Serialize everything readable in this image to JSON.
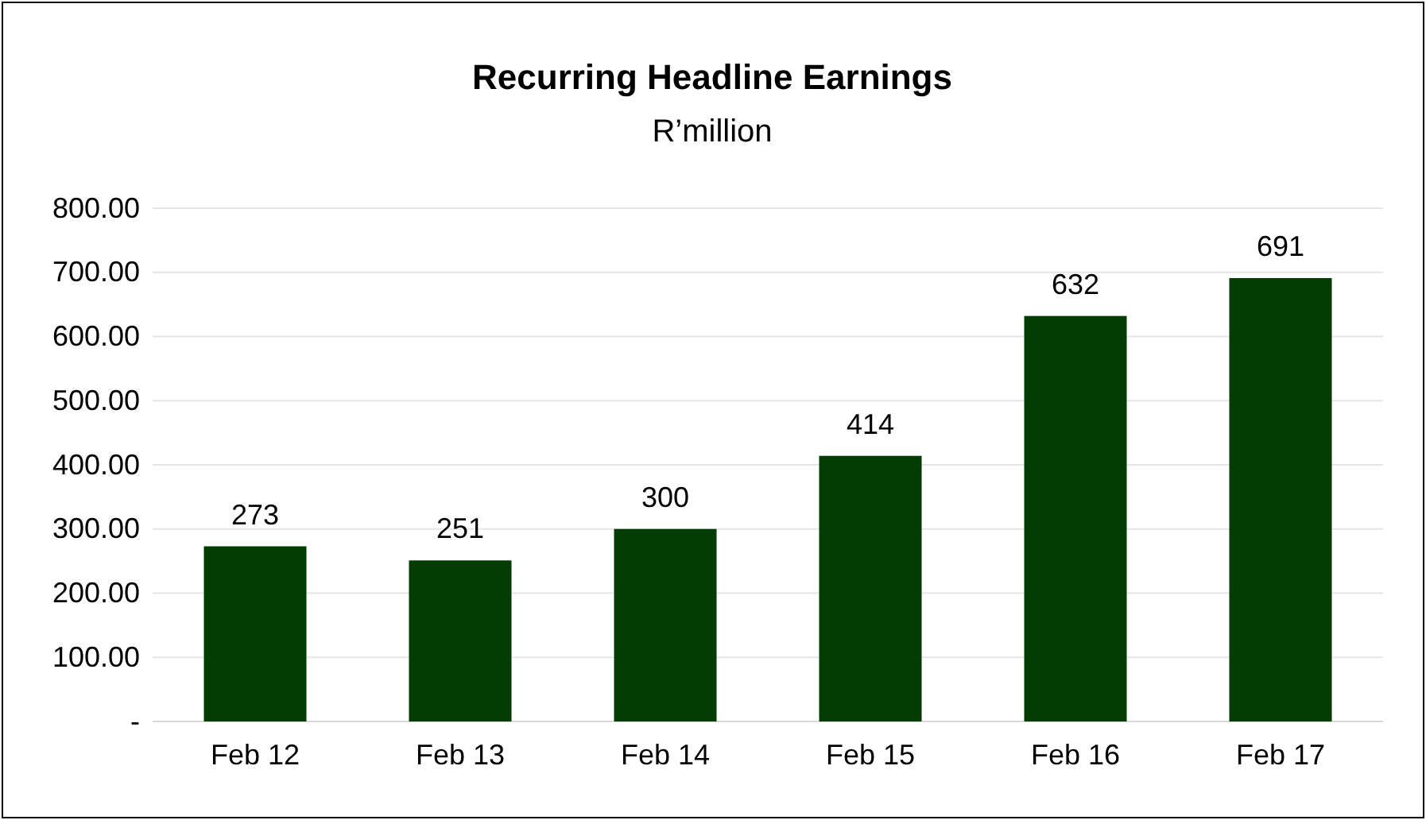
{
  "chart_data": {
    "type": "bar",
    "title": "Recurring Headline Earnings",
    "subtitle": "R’million",
    "categories": [
      "Feb 12",
      "Feb 13",
      "Feb 14",
      "Feb 15",
      "Feb 16",
      "Feb 17"
    ],
    "values": [
      273,
      251,
      300,
      414,
      632,
      691
    ],
    "color": "#033d03",
    "ylim": [
      0,
      800
    ],
    "yticks": [
      {
        "value": 0,
        "label": "-"
      },
      {
        "value": 100,
        "label": "100.00"
      },
      {
        "value": 200,
        "label": "200.00"
      },
      {
        "value": 300,
        "label": "300.00"
      },
      {
        "value": 400,
        "label": "400.00"
      },
      {
        "value": 500,
        "label": "500.00"
      },
      {
        "value": 600,
        "label": "600.00"
      },
      {
        "value": 700,
        "label": "700.00"
      },
      {
        "value": 800,
        "label": "800.00"
      }
    ],
    "grid": "y",
    "data_labels": true
  }
}
